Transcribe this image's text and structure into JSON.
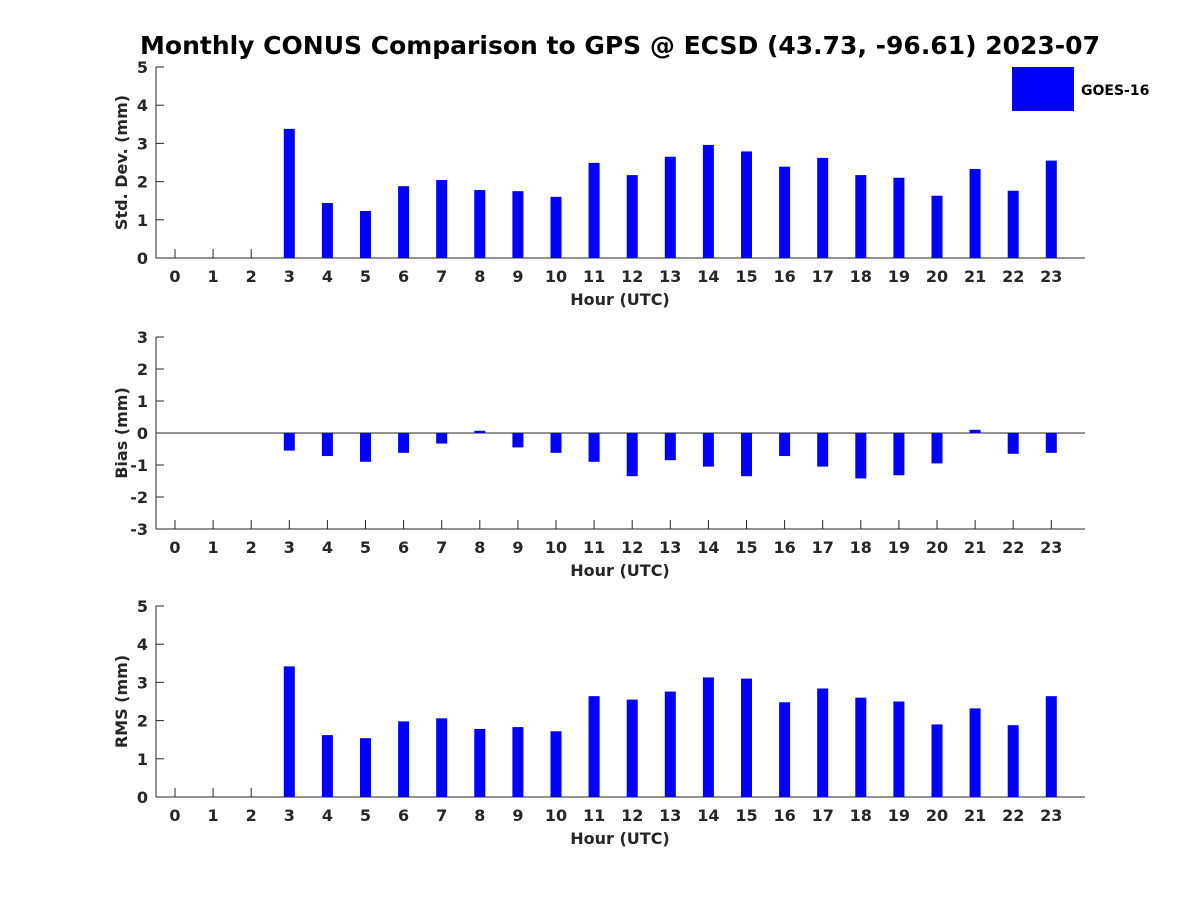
{
  "figure_title": "Monthly CONUS Comparison to GPS @ ECSD (43.73, -96.61) 2023-07",
  "legend": {
    "label": "GOES-16",
    "color": "#0000ff"
  },
  "chart_data": [
    {
      "type": "bar",
      "ylabel": "Std. Dev. (mm)",
      "xlabel": "Hour (UTC)",
      "ylim": [
        0,
        5
      ],
      "yticks": [
        "0",
        "1",
        "2",
        "3",
        "4",
        "5"
      ],
      "categories": [
        "0",
        "1",
        "2",
        "3",
        "4",
        "5",
        "6",
        "7",
        "8",
        "9",
        "10",
        "11",
        "12",
        "13",
        "14",
        "15",
        "16",
        "17",
        "18",
        "19",
        "20",
        "21",
        "22",
        "23"
      ],
      "series": [
        {
          "name": "GOES-16",
          "color": "#0000ff",
          "values": [
            null,
            null,
            null,
            3.38,
            1.44,
            1.23,
            1.88,
            2.04,
            1.78,
            1.75,
            1.6,
            2.49,
            2.17,
            2.65,
            2.96,
            2.79,
            2.39,
            2.62,
            2.17,
            2.1,
            1.63,
            2.33,
            1.76,
            2.55
          ]
        }
      ]
    },
    {
      "type": "bar",
      "ylabel": "Bias (mm)",
      "xlabel": "Hour (UTC)",
      "ylim": [
        -3,
        3
      ],
      "yticks": [
        "-3",
        "-2",
        "-1",
        "0",
        "1",
        "2",
        "3"
      ],
      "categories": [
        "0",
        "1",
        "2",
        "3",
        "4",
        "5",
        "6",
        "7",
        "8",
        "9",
        "10",
        "11",
        "12",
        "13",
        "14",
        "15",
        "16",
        "17",
        "18",
        "19",
        "20",
        "21",
        "22",
        "23"
      ],
      "series": [
        {
          "name": "GOES-16",
          "color": "#0000ff",
          "values": [
            null,
            null,
            null,
            -0.55,
            -0.72,
            -0.9,
            -0.62,
            -0.33,
            0.07,
            -0.45,
            -0.62,
            -0.9,
            -1.35,
            -0.85,
            -1.05,
            -1.35,
            -0.72,
            -1.05,
            -1.42,
            -1.32,
            -0.95,
            0.1,
            -0.65,
            -0.62
          ]
        }
      ]
    },
    {
      "type": "bar",
      "ylabel": "RMS (mm)",
      "xlabel": "Hour (UTC)",
      "ylim": [
        0,
        5
      ],
      "yticks": [
        "0",
        "1",
        "2",
        "3",
        "4",
        "5"
      ],
      "categories": [
        "0",
        "1",
        "2",
        "3",
        "4",
        "5",
        "6",
        "7",
        "8",
        "9",
        "10",
        "11",
        "12",
        "13",
        "14",
        "15",
        "16",
        "17",
        "18",
        "19",
        "20",
        "21",
        "22",
        "23"
      ],
      "series": [
        {
          "name": "GOES-16",
          "color": "#0000ff",
          "values": [
            null,
            null,
            null,
            3.42,
            1.62,
            1.54,
            1.98,
            2.06,
            1.78,
            1.83,
            1.72,
            2.64,
            2.55,
            2.76,
            3.13,
            3.1,
            2.48,
            2.84,
            2.6,
            2.5,
            1.9,
            2.32,
            1.88,
            2.64
          ]
        }
      ]
    }
  ]
}
